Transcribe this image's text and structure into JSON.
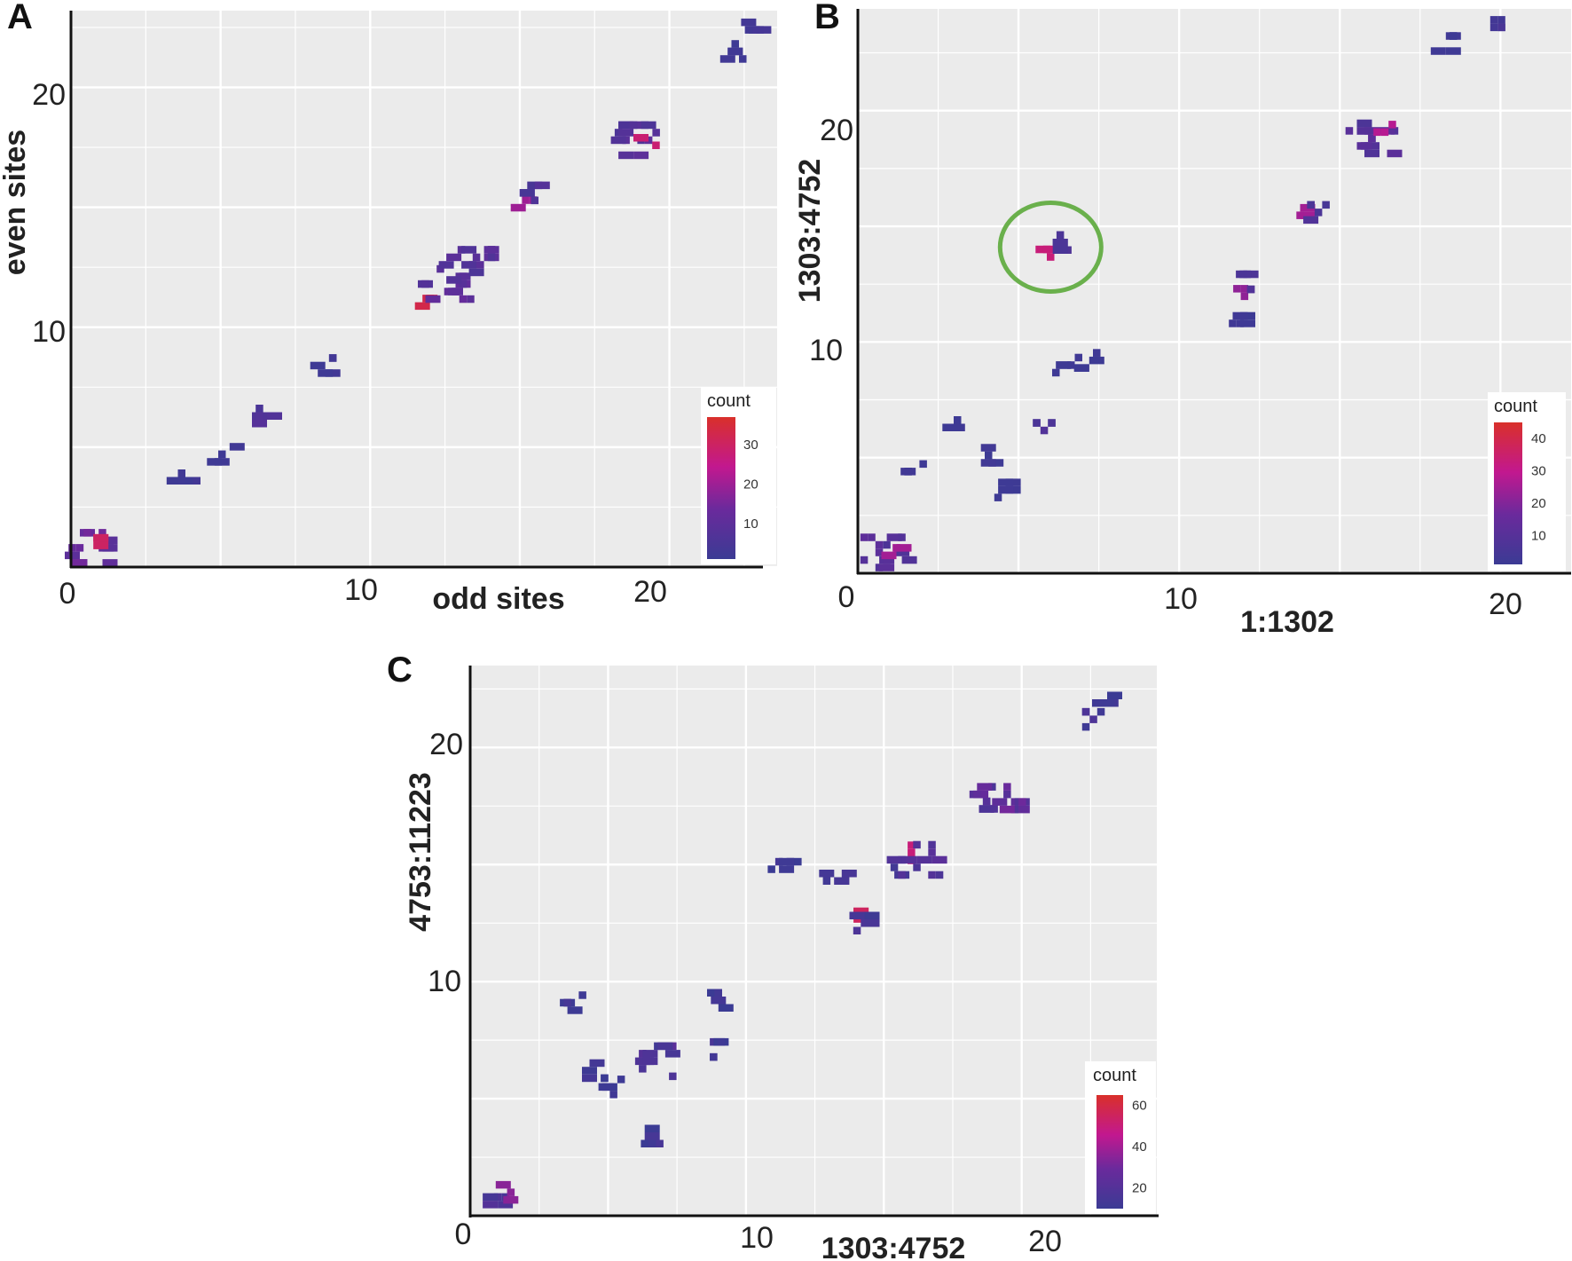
{
  "chart_data": [
    {
      "type": "heatmap",
      "panel": "A",
      "xlabel": "odd sites",
      "ylabel": "even sites",
      "xlim": [
        0,
        23.6
      ],
      "ylim": [
        0,
        23.2
      ],
      "x_ticks": [
        0,
        10,
        20
      ],
      "x_tick_labels": [
        "0",
        "10",
        "20"
      ],
      "y_ticks": [
        10,
        20
      ],
      "y_tick_labels": [
        "10",
        "20"
      ],
      "legend": {
        "title": "count",
        "ticks": [
          10,
          20,
          30
        ],
        "tick_labels": [
          "10",
          "20",
          "30"
        ],
        "min": 1,
        "max": 37
      },
      "clusters": [
        {
          "x": 0.8,
          "y": 0.8,
          "count": 14
        },
        {
          "x": 1.0,
          "y": 0.9,
          "count": 30
        },
        {
          "x": 3.7,
          "y": 3.6,
          "count": 3
        },
        {
          "x": 5.3,
          "y": 4.7,
          "count": 3
        },
        {
          "x": 6.3,
          "y": 6.3,
          "count": 8
        },
        {
          "x": 8.5,
          "y": 8.4,
          "count": 3
        },
        {
          "x": 12.0,
          "y": 11.2,
          "count": 33
        },
        {
          "x": 12.6,
          "y": 11.8,
          "count": 12
        },
        {
          "x": 13.3,
          "y": 12.6,
          "count": 10
        },
        {
          "x": 15.2,
          "y": 15.3,
          "count": 20
        },
        {
          "x": 15.5,
          "y": 15.6,
          "count": 8
        },
        {
          "x": 18.8,
          "y": 17.8,
          "count": 10
        },
        {
          "x": 19.3,
          "y": 17.9,
          "count": 28
        },
        {
          "x": 22.2,
          "y": 21.5,
          "count": 3
        },
        {
          "x": 22.9,
          "y": 22.4,
          "count": 4
        }
      ]
    },
    {
      "type": "heatmap",
      "panel": "B",
      "xlabel": "1:1302",
      "ylabel": "1303:4752",
      "xlim": [
        0,
        22.2
      ],
      "ylim": [
        0,
        24.4
      ],
      "x_ticks": [
        0,
        10,
        20
      ],
      "x_tick_labels": [
        "0",
        "10",
        "20"
      ],
      "y_ticks": [
        10,
        20
      ],
      "y_tick_labels": [
        "10",
        "20"
      ],
      "legend": {
        "title": "count",
        "ticks": [
          10,
          20,
          30,
          40
        ],
        "tick_labels": [
          "10",
          "20",
          "30",
          "40"
        ],
        "min": 1,
        "max": 45
      },
      "highlight": {
        "x": 6.0,
        "y": 14.1,
        "note": "green circle"
      },
      "clusters": [
        {
          "x": 0.9,
          "y": 0.9,
          "count": 12
        },
        {
          "x": 1.2,
          "y": 1.1,
          "count": 25
        },
        {
          "x": 1.8,
          "y": 4.4,
          "count": 3
        },
        {
          "x": 3.1,
          "y": 6.3,
          "count": 3
        },
        {
          "x": 4.3,
          "y": 5.1,
          "count": 3
        },
        {
          "x": 4.6,
          "y": 3.6,
          "count": 3
        },
        {
          "x": 5.8,
          "y": 6.5,
          "count": 8
        },
        {
          "x": 6.0,
          "y": 14.0,
          "count": 33
        },
        {
          "x": 6.3,
          "y": 14.3,
          "count": 8
        },
        {
          "x": 6.4,
          "y": 9.0,
          "count": 3
        },
        {
          "x": 7.2,
          "y": 9.2,
          "count": 3
        },
        {
          "x": 11.8,
          "y": 12.3,
          "count": 22
        },
        {
          "x": 12.0,
          "y": 12.6,
          "count": 8
        },
        {
          "x": 11.9,
          "y": 10.8,
          "count": 3
        },
        {
          "x": 14.0,
          "y": 15.8,
          "count": 25
        },
        {
          "x": 14.1,
          "y": 15.6,
          "count": 8
        },
        {
          "x": 16.0,
          "y": 18.8,
          "count": 12
        },
        {
          "x": 16.4,
          "y": 19.4,
          "count": 28
        },
        {
          "x": 18.3,
          "y": 22.9,
          "count": 3
        },
        {
          "x": 19.8,
          "y": 23.6,
          "count": 6
        }
      ]
    },
    {
      "type": "heatmap",
      "panel": "C",
      "xlabel": "1303:4752",
      "ylabel": "4753:11223",
      "xlim": [
        0,
        24.9
      ],
      "ylim": [
        0,
        23.5
      ],
      "x_ticks": [
        0,
        10,
        20
      ],
      "x_tick_labels": [
        "0",
        "10",
        "20"
      ],
      "y_ticks": [
        10,
        20
      ],
      "y_tick_labels": [
        "10",
        "20"
      ],
      "legend": {
        "title": "count",
        "ticks": [
          20,
          40,
          60
        ],
        "tick_labels": [
          "20",
          "40",
          "60"
        ],
        "min": 10,
        "max": 65
      },
      "clusters": [
        {
          "x": 1.0,
          "y": 0.8,
          "count": 20
        },
        {
          "x": 1.2,
          "y": 1.0,
          "count": 35
        },
        {
          "x": 3.8,
          "y": 9.1,
          "count": 15
        },
        {
          "x": 4.6,
          "y": 6.2,
          "count": 15
        },
        {
          "x": 5.2,
          "y": 5.5,
          "count": 15
        },
        {
          "x": 6.6,
          "y": 3.4,
          "count": 15
        },
        {
          "x": 6.8,
          "y": 6.6,
          "count": 22
        },
        {
          "x": 9.0,
          "y": 9.2,
          "count": 15
        },
        {
          "x": 9.1,
          "y": 7.1,
          "count": 15
        },
        {
          "x": 11.2,
          "y": 14.8,
          "count": 15
        },
        {
          "x": 13.2,
          "y": 14.3,
          "count": 20
        },
        {
          "x": 13.9,
          "y": 13.0,
          "count": 55
        },
        {
          "x": 14.3,
          "y": 12.5,
          "count": 18
        },
        {
          "x": 16.0,
          "y": 15.5,
          "count": 50
        },
        {
          "x": 16.2,
          "y": 15.2,
          "count": 22
        },
        {
          "x": 19.0,
          "y": 17.7,
          "count": 20
        },
        {
          "x": 19.2,
          "y": 18.0,
          "count": 30
        },
        {
          "x": 22.6,
          "y": 21.2,
          "count": 18
        },
        {
          "x": 23.1,
          "y": 21.9,
          "count": 15
        }
      ]
    }
  ]
}
